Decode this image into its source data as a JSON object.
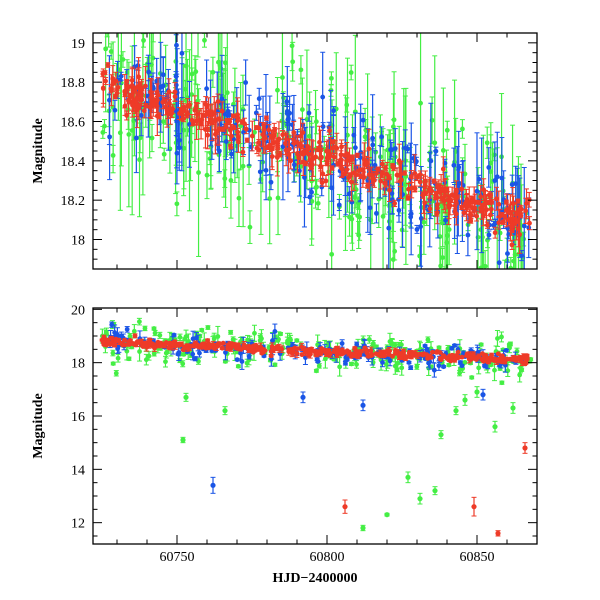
{
  "colors": {
    "green": "#44ee44",
    "blue": "#1a55e6",
    "red": "#ee3b28",
    "frame": "#000000"
  },
  "chart_data": [
    {
      "type": "scatter",
      "ylabel": "Magnitude",
      "xlabel": "",
      "xlim": [
        60722,
        60870
      ],
      "ylim": [
        19.05,
        17.85
      ],
      "y_inverted": true,
      "xticks": [
        60750,
        60800,
        60850
      ],
      "xtick_labels": [
        "",
        "",
        ""
      ],
      "yticks": [
        18,
        18.2,
        18.4,
        18.6,
        18.8,
        19
      ],
      "ytick_labels": [
        "18",
        "18.2",
        "18.4",
        "18.6",
        "18.8",
        "19"
      ],
      "trend": {
        "x": [
          60725,
          60868
        ],
        "y": [
          18.79,
          18.08
        ]
      },
      "series": [
        {
          "color": "#44ee44",
          "count": 260,
          "scatter": 0.2,
          "err": [
            0.03,
            0.45
          ]
        },
        {
          "color": "#1a55e6",
          "count": 220,
          "scatter": 0.12,
          "err": [
            0.02,
            0.3
          ]
        },
        {
          "color": "#ee3b28",
          "count": 420,
          "scatter": 0.05,
          "err": [
            0.01,
            0.1
          ]
        }
      ]
    },
    {
      "type": "scatter",
      "ylabel": "Magnitude",
      "xlabel": "HJD−2400000",
      "xlim": [
        60722,
        60870
      ],
      "ylim": [
        20.05,
        11.2
      ],
      "y_inverted": true,
      "xticks": [
        60750,
        60800,
        60850
      ],
      "xtick_labels": [
        "60750",
        "60800",
        "60850"
      ],
      "yticks": [
        12,
        14,
        16,
        18,
        20
      ],
      "ytick_labels": [
        "12",
        "14",
        "16",
        "18",
        "20"
      ],
      "trend": {
        "x": [
          60725,
          60868
        ],
        "y": [
          18.79,
          18.08
        ]
      },
      "series": [
        {
          "color": "#44ee44",
          "count": 240,
          "scatter": 0.35,
          "err": [
            0.05,
            0.4
          ]
        },
        {
          "color": "#1a55e6",
          "count": 180,
          "scatter": 0.2,
          "err": [
            0.04,
            0.3
          ]
        },
        {
          "color": "#ee3b28",
          "count": 380,
          "scatter": 0.08,
          "err": [
            0.02,
            0.15
          ]
        }
      ],
      "outliers": [
        {
          "x": 60752,
          "y": 15.1,
          "color": "#44ee44",
          "err": 0.1
        },
        {
          "x": 60753,
          "y": 16.7,
          "color": "#44ee44",
          "err": 0.15
        },
        {
          "x": 60766,
          "y": 16.2,
          "color": "#44ee44",
          "err": 0.15
        },
        {
          "x": 60812,
          "y": 11.8,
          "color": "#44ee44",
          "err": 0.1
        },
        {
          "x": 60820,
          "y": 12.3,
          "color": "#44ee44",
          "err": 0.05
        },
        {
          "x": 60827,
          "y": 13.7,
          "color": "#44ee44",
          "err": 0.2
        },
        {
          "x": 60831,
          "y": 12.9,
          "color": "#44ee44",
          "err": 0.2
        },
        {
          "x": 60836,
          "y": 13.2,
          "color": "#44ee44",
          "err": 0.15
        },
        {
          "x": 60838,
          "y": 15.3,
          "color": "#44ee44",
          "err": 0.15
        },
        {
          "x": 60843,
          "y": 16.2,
          "color": "#44ee44",
          "err": 0.15
        },
        {
          "x": 60846,
          "y": 16.6,
          "color": "#44ee44",
          "err": 0.2
        },
        {
          "x": 60850,
          "y": 16.9,
          "color": "#44ee44",
          "err": 0.2
        },
        {
          "x": 60856,
          "y": 15.6,
          "color": "#44ee44",
          "err": 0.2
        },
        {
          "x": 60862,
          "y": 16.3,
          "color": "#44ee44",
          "err": 0.2
        },
        {
          "x": 60762,
          "y": 13.4,
          "color": "#1a55e6",
          "err": 0.3
        },
        {
          "x": 60792,
          "y": 16.7,
          "color": "#1a55e6",
          "err": 0.2
        },
        {
          "x": 60812,
          "y": 16.4,
          "color": "#1a55e6",
          "err": 0.2
        },
        {
          "x": 60852,
          "y": 16.8,
          "color": "#1a55e6",
          "err": 0.2
        },
        {
          "x": 60806,
          "y": 12.6,
          "color": "#ee3b28",
          "err": 0.25
        },
        {
          "x": 60849,
          "y": 12.6,
          "color": "#ee3b28",
          "err": 0.35
        },
        {
          "x": 60857,
          "y": 11.6,
          "color": "#ee3b28",
          "err": 0.1
        },
        {
          "x": 60866,
          "y": 14.8,
          "color": "#ee3b28",
          "err": 0.2
        }
      ]
    }
  ]
}
